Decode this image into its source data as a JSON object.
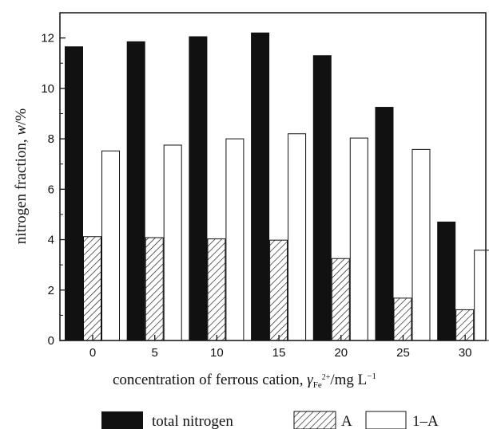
{
  "chart_data": {
    "type": "bar",
    "categories": [
      "0",
      "5",
      "10",
      "15",
      "20",
      "25",
      "30"
    ],
    "series": [
      {
        "name": "total nitrogen",
        "values": [
          11.65,
          11.85,
          12.05,
          12.2,
          11.3,
          9.25,
          4.7
        ],
        "fill": "#111111",
        "pattern": "solid"
      },
      {
        "name": "A",
        "values": [
          4.12,
          4.08,
          4.03,
          3.98,
          3.25,
          1.68,
          1.22
        ],
        "fill": "#ffffff",
        "pattern": "hatch"
      },
      {
        "name": "1–A",
        "values": [
          7.52,
          7.75,
          8.0,
          8.2,
          8.03,
          7.58,
          3.58
        ],
        "fill": "#ffffff",
        "pattern": "none"
      }
    ],
    "ylim": [
      0,
      13
    ],
    "yticks": [
      0,
      2,
      4,
      6,
      8,
      10,
      12
    ],
    "ylabel_prefix": "nitrogen fraction, ",
    "ylabel_var": "w",
    "ylabel_suffix": "/%",
    "xlabel_prefix": "concentration of ferrous cation, ",
    "xlabel_var": "γ",
    "xlabel_sub": "Fe",
    "xlabel_sup": "2+",
    "xlabel_suffix": "/mg L",
    "xlabel_unit_sup": "−1",
    "legend_position": "bottom",
    "grid": false
  }
}
